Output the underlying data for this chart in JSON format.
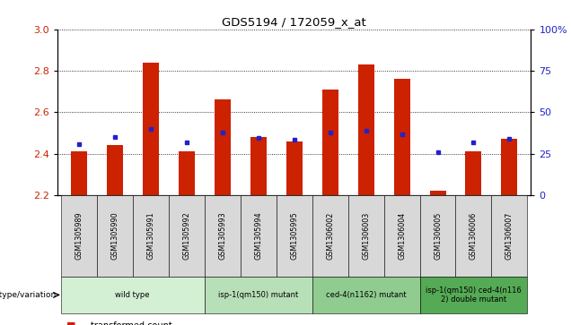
{
  "title": "GDS5194 / 172059_x_at",
  "samples": [
    "GSM1305989",
    "GSM1305990",
    "GSM1305991",
    "GSM1305992",
    "GSM1305993",
    "GSM1305994",
    "GSM1305995",
    "GSM1306002",
    "GSM1306003",
    "GSM1306004",
    "GSM1306005",
    "GSM1306006",
    "GSM1306007"
  ],
  "bar_heights": [
    2.41,
    2.44,
    2.84,
    2.41,
    2.66,
    2.48,
    2.46,
    2.71,
    2.83,
    2.76,
    2.22,
    2.41,
    2.47
  ],
  "blue_markers": [
    2.445,
    2.48,
    2.52,
    2.455,
    2.5,
    2.475,
    2.465,
    2.5,
    2.51,
    2.495,
    2.405,
    2.455,
    2.47
  ],
  "bar_base": 2.2,
  "ylim_left": [
    2.2,
    3.0
  ],
  "ylim_right": [
    0,
    100
  ],
  "yticks_left": [
    2.2,
    2.4,
    2.6,
    2.8,
    3.0
  ],
  "yticks_right": [
    0,
    25,
    50,
    75,
    100
  ],
  "bar_color": "#cc2200",
  "blue_color": "#2222cc",
  "groups": [
    {
      "label": "wild type",
      "start": 0,
      "end": 4,
      "color": "#d4f0d4"
    },
    {
      "label": "isp-1(qm150) mutant",
      "start": 4,
      "end": 7,
      "color": "#b8e0b8"
    },
    {
      "label": "ced-4(n1162) mutant",
      "start": 7,
      "end": 10,
      "color": "#90cc90"
    },
    {
      "label": "isp-1(qm150) ced-4(n116\n2) double mutant",
      "start": 10,
      "end": 13,
      "color": "#55aa55"
    }
  ],
  "left_axis_color": "#cc2200",
  "right_axis_color": "#2222cc",
  "bar_width": 0.45
}
